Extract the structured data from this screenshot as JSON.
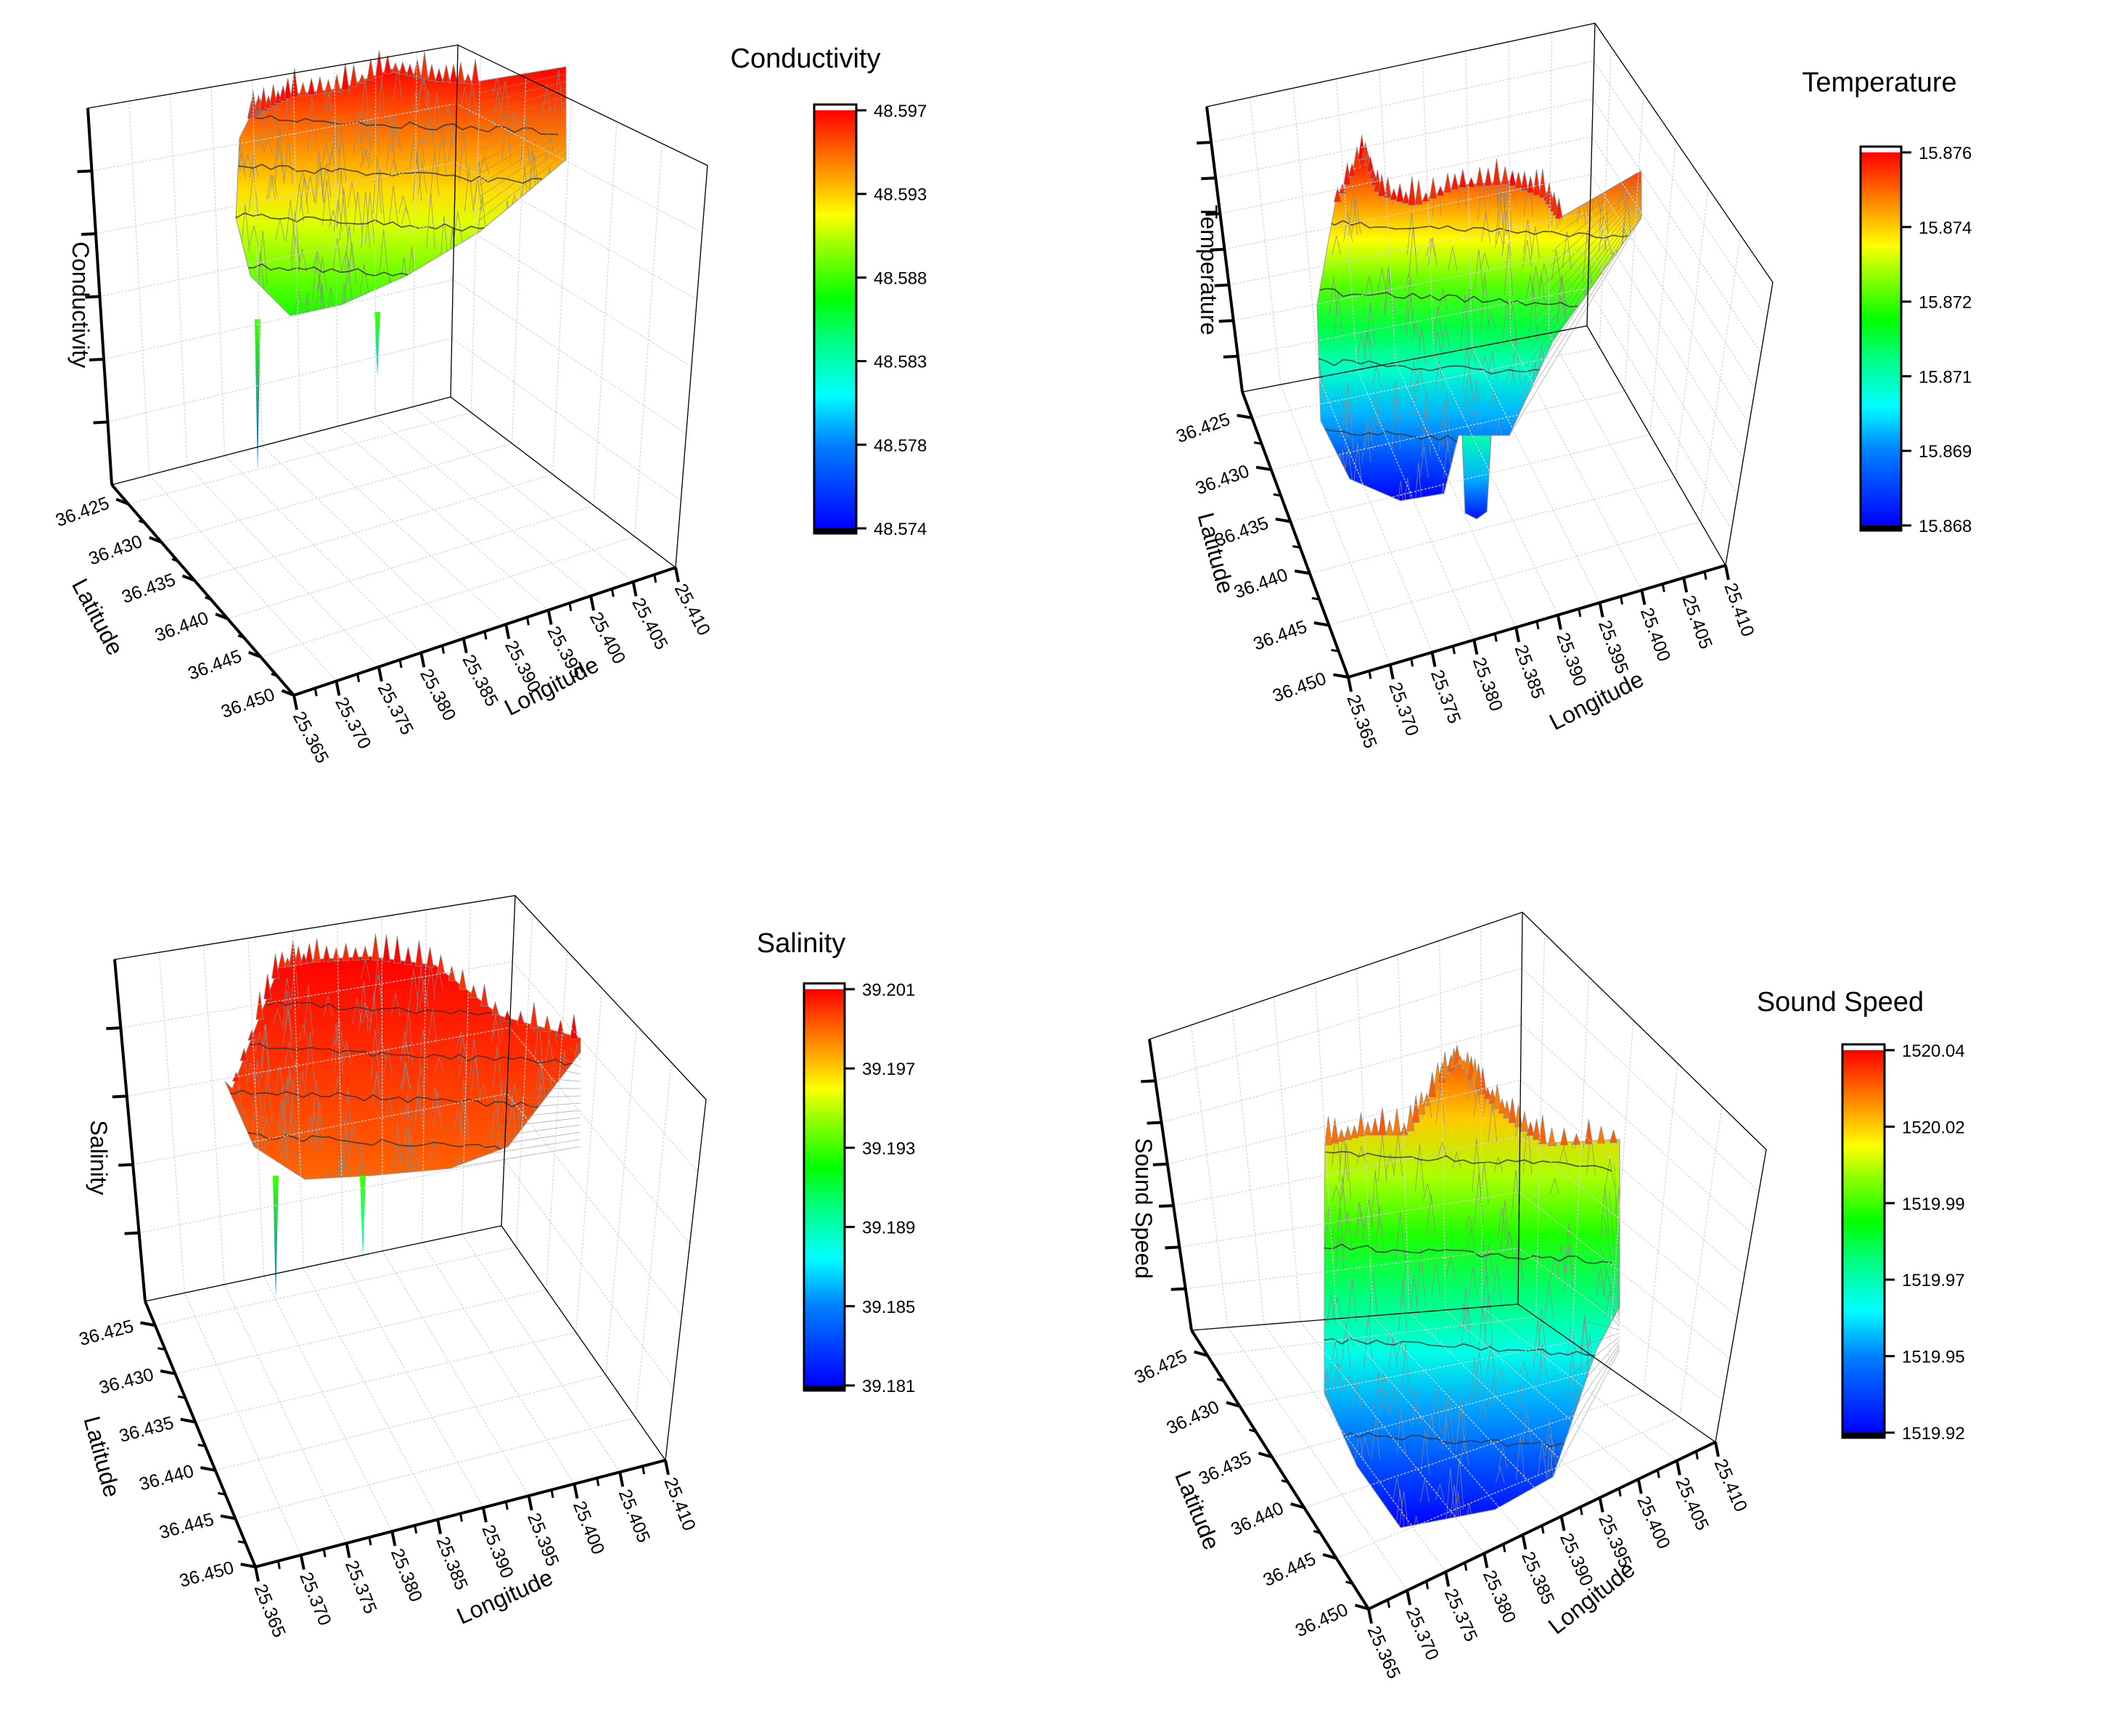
{
  "figure": {
    "description": "Four 3D surface plots of ocean measurements over latitude/longitude grid"
  },
  "chart_data": [
    {
      "id": "conductivity",
      "type": "surface3d",
      "title": "Conductivity",
      "xlabel": "Longitude",
      "ylabel": "Latitude",
      "zlabel": "Conductivity",
      "x_ticks": [
        "25.365",
        "25.370",
        "25.375",
        "25.380",
        "25.385",
        "25.390",
        "25.395",
        "25.400",
        "25.405",
        "25.410"
      ],
      "y_ticks": [
        "36.425",
        "36.430",
        "36.435",
        "36.440",
        "36.445",
        "36.450"
      ],
      "xlim": [
        25.365,
        25.41
      ],
      "ylim": [
        36.4225,
        36.45
      ],
      "z_tick_count": 5,
      "grid": true,
      "colormap": "rainbow",
      "colorbar": {
        "ticks": [
          "48.597",
          "48.593",
          "48.588",
          "48.583",
          "48.578",
          "48.574"
        ],
        "range": [
          48.574,
          48.597
        ],
        "placement": "right"
      },
      "surface_color_range": [
        48.587,
        48.597
      ],
      "surface_note": "surface mostly orange-red to yellow; two thin downward spikes reaching green/blue"
    },
    {
      "id": "temperature",
      "type": "surface3d",
      "title": "Temperature",
      "xlabel": "Longitude",
      "ylabel": "Latitude",
      "zlabel": "Temperature",
      "x_ticks": [
        "25.365",
        "25.370",
        "25.375",
        "25.380",
        "25.385",
        "25.390",
        "25.395",
        "25.400",
        "25.405",
        "25.410"
      ],
      "y_ticks": [
        "36.425",
        "36.430",
        "36.435",
        "36.440",
        "36.445",
        "36.450"
      ],
      "xlim": [
        25.365,
        25.41
      ],
      "ylim": [
        36.4225,
        36.45
      ],
      "z_tick_count": 7,
      "grid": true,
      "colormap": "rainbow",
      "colorbar": {
        "ticks": [
          "15.876",
          "15.874",
          "15.872",
          "15.871",
          "15.869",
          "15.868"
        ],
        "range": [
          15.868,
          15.876
        ],
        "placement": "right"
      },
      "surface_color_range": [
        15.868,
        15.876
      ],
      "surface_note": "surface ranges green to orange; a deep blue trough near longitude 25.38"
    },
    {
      "id": "salinity",
      "type": "surface3d",
      "title": "Salinity",
      "xlabel": "Longitude",
      "ylabel": "Latitude",
      "zlabel": "Salinity",
      "x_ticks": [
        "25.365",
        "25.370",
        "25.375",
        "25.380",
        "25.385",
        "25.390",
        "25.395",
        "25.400",
        "25.405",
        "25.410"
      ],
      "y_ticks": [
        "36.425",
        "36.430",
        "36.435",
        "36.440",
        "36.445",
        "36.450"
      ],
      "xlim": [
        25.365,
        25.41
      ],
      "ylim": [
        36.4225,
        36.45
      ],
      "z_tick_count": 4,
      "grid": true,
      "colormap": "rainbow",
      "colorbar": {
        "ticks": [
          "39.201",
          "39.197",
          "39.193",
          "39.189",
          "39.185",
          "39.181"
        ],
        "range": [
          39.181,
          39.201
        ],
        "placement": "right"
      },
      "surface_color_range": [
        39.199,
        39.201
      ],
      "surface_note": "nearly flat red surface at the top; two thin downward spikes (green/blue and yellow)"
    },
    {
      "id": "sound_speed",
      "type": "surface3d",
      "title": "Sound Speed",
      "xlabel": "Longitude",
      "ylabel": "Latitude",
      "zlabel": "Sound Speed",
      "x_ticks": [
        "25.365",
        "25.370",
        "25.375",
        "25.380",
        "25.385",
        "25.390",
        "25.395",
        "25.400",
        "25.405",
        "25.410"
      ],
      "y_ticks": [
        "36.425",
        "36.430",
        "36.435",
        "36.440",
        "36.445",
        "36.450"
      ],
      "xlim": [
        25.365,
        25.41
      ],
      "ylim": [
        36.4225,
        36.45
      ],
      "z_tick_count": 6,
      "grid": true,
      "colormap": "rainbow",
      "colorbar": {
        "ticks": [
          "1520.04",
          "1520.02",
          "1519.99",
          "1519.97",
          "1519.95",
          "1519.92"
        ],
        "range": [
          1519.92,
          1520.04
        ],
        "placement": "right"
      },
      "surface_color_range": [
        1519.92,
        1520.03
      ],
      "surface_note": "tall surface sloping from blue at south to orange peaks at north"
    }
  ]
}
